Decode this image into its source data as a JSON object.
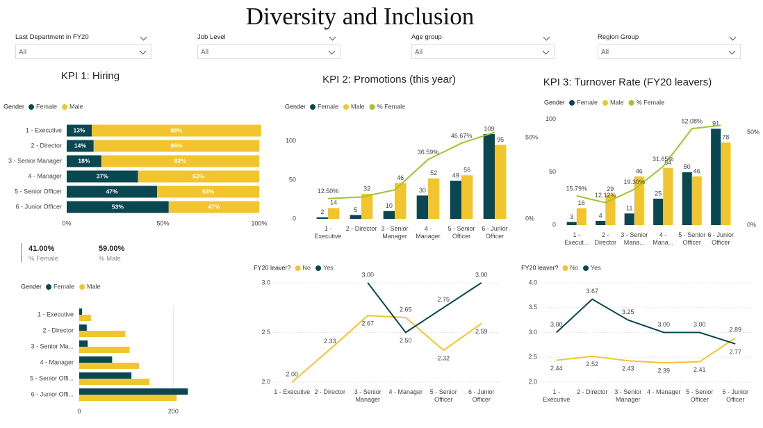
{
  "title": "Diversity and Inclusion",
  "filters": [
    {
      "label": "Last Department in FY20",
      "value": "All"
    },
    {
      "label": "Job Level",
      "value": "All"
    },
    {
      "label": "Age group",
      "value": "All"
    },
    {
      "label": "Region Group",
      "value": "All"
    }
  ],
  "cards": [
    {
      "value": "41.00%",
      "label": "% Female"
    },
    {
      "value": "59.00%",
      "label": "% Male"
    }
  ],
  "chart_data": [
    {
      "type": "bar",
      "orientation": "horizontal",
      "stacked": true,
      "grid": false,
      "title": "KPI 1: Hiring",
      "legend_title": "Gender",
      "categories": [
        "1 - Executive",
        "2 - Director",
        "3 - Senior Manager",
        "4 - Manager",
        "5 - Senior Officer",
        "6 - Junior Officer"
      ],
      "series": [
        {
          "name": "Female",
          "color": "#0b4751",
          "values": [
            13,
            14,
            18,
            37,
            47,
            53
          ],
          "value_labels": [
            "13%",
            "14%",
            "18%",
            "37%",
            "47%",
            "53%"
          ]
        },
        {
          "name": "Male",
          "color": "#f2c530",
          "values": [
            88,
            86,
            82,
            63,
            53,
            47
          ],
          "value_labels": [
            "88%",
            "86%",
            "82%",
            "63%",
            "53%",
            "47%"
          ]
        }
      ],
      "xlim": [
        0,
        100
      ],
      "xticks": [
        {
          "value": 0,
          "label": "0%"
        },
        {
          "value": 50,
          "label": "50%"
        },
        {
          "value": 100,
          "label": "100%"
        }
      ]
    },
    {
      "type": "combo",
      "grid": false,
      "title": "KPI 2: Promotions (this year)",
      "legend_title": "Gender",
      "categories": [
        "1 - Executive",
        "2 - Director",
        "3 - Senior Manager",
        "4 - Manager",
        "5 - Senior Officer",
        "6 - Junior Officer"
      ],
      "series": [
        {
          "name": "Female",
          "type": "bar",
          "color": "#0b4751",
          "values": [
            2,
            5,
            10,
            30,
            49,
            109
          ]
        },
        {
          "name": "Male",
          "type": "bar",
          "color": "#f2c530",
          "values": [
            14,
            32,
            46,
            52,
            56,
            95
          ]
        },
        {
          "name": "% Female",
          "type": "line",
          "axis": "y2",
          "color": "#9dc62d",
          "values": [
            12.5,
            13.51,
            17.86,
            36.59,
            46.67,
            53.43
          ],
          "value_labels": [
            "12.50%",
            null,
            null,
            "36.59%",
            "46.67%",
            null
          ]
        }
      ],
      "ylim": [
        0,
        125
      ],
      "yticks": [
        0,
        50,
        100
      ],
      "y2lim": [
        0,
        60
      ],
      "y2ticks": [
        {
          "value": 0,
          "label": "0%"
        },
        {
          "value": 50,
          "label": "50%"
        }
      ]
    },
    {
      "type": "combo",
      "grid": false,
      "title": "KPI 3: Turnover Rate (FY20 leavers)",
      "legend_title": "Gender",
      "categories": [
        "1 - Execut...",
        "2 - Director",
        "3 - Senior Mana...",
        "4 - Mana...",
        "5 - Senior Officer",
        "6 - Junior Officer"
      ],
      "series": [
        {
          "name": "Female",
          "type": "bar",
          "color": "#0b4751",
          "values": [
            3,
            4,
            11,
            25,
            50,
            91
          ]
        },
        {
          "name": "Male",
          "type": "bar",
          "color": "#f2c530",
          "values": [
            16,
            29,
            46,
            54,
            46,
            78
          ]
        },
        {
          "name": "% Female",
          "type": "line",
          "axis": "y2",
          "color": "#9dc62d",
          "values": [
            15.79,
            12.12,
            19.3,
            31.65,
            52.08,
            53.85
          ],
          "value_labels": [
            "15.79%",
            "12.12%",
            "19.30%",
            "31.65%",
            "52.08%",
            null
          ]
        }
      ],
      "ylim": [
        0,
        105
      ],
      "yticks": [
        0,
        50,
        100
      ],
      "y2lim": [
        0,
        60
      ],
      "y2ticks": [
        {
          "value": 0,
          "label": "0%"
        },
        {
          "value": 50,
          "label": "50%"
        }
      ]
    },
    {
      "type": "bar",
      "orientation": "horizontal",
      "stacked": false,
      "grid": true,
      "legend_title": "Gender",
      "categories": [
        "1 - Executive",
        "2 - Director",
        "3 - Senior Ma...",
        "4 - Manager",
        "5 - Senior Offi...",
        "6 - Junior Offi..."
      ],
      "series": [
        {
          "name": "Female",
          "color": "#0b4751",
          "values": [
            6,
            16,
            18,
            70,
            111,
            231
          ]
        },
        {
          "name": "Male",
          "color": "#f2c530",
          "values": [
            25,
            98,
            107,
            127,
            149,
            207
          ]
        }
      ],
      "xlim": [
        0,
        260
      ],
      "xticks": [
        0,
        200
      ]
    },
    {
      "type": "line",
      "grid": true,
      "legend_title": "FY20 leaver?",
      "categories": [
        "1 - Executive",
        "2 - Director",
        "3 - Senior Manager",
        "4 - Manager",
        "5 - Senior Officer",
        "6 - Junior Officer"
      ],
      "series": [
        {
          "name": "No",
          "color": "#f2c530",
          "values": [
            2.0,
            2.33,
            2.67,
            2.65,
            2.32,
            2.59
          ],
          "value_labels": [
            "2.00",
            "2.33",
            "2.67",
            "2.65",
            "2.32",
            "2.59"
          ]
        },
        {
          "name": "Yes",
          "color": "#0b4751",
          "values": [
            null,
            null,
            3.0,
            2.5,
            2.75,
            3.0
          ],
          "value_labels": [
            null,
            null,
            "3.00",
            "2.50",
            "2.75",
            "3.00"
          ]
        }
      ],
      "ylim": [
        2.0,
        3.0
      ],
      "yticks": [
        {
          "value": 2.0,
          "label": "2.0"
        },
        {
          "value": 2.5,
          "label": "2.5"
        },
        {
          "value": 3.0,
          "label": "3.0"
        }
      ]
    },
    {
      "type": "line",
      "grid": true,
      "legend_title": "FY20 leaver?",
      "categories": [
        "1 - Executive",
        "2 - Director",
        "3 - Senior Manager",
        "4 - Manager",
        "5 - Senior Officer",
        "6 - Junior Officer"
      ],
      "series": [
        {
          "name": "No",
          "color": "#f2c530",
          "values": [
            2.44,
            2.52,
            2.43,
            2.39,
            2.41,
            2.89
          ],
          "value_labels": [
            "2.44",
            "2.52",
            "2.43",
            "2.39",
            "2.41",
            "2.89"
          ]
        },
        {
          "name": "Yes",
          "color": "#0b4751",
          "values": [
            3.0,
            3.67,
            3.25,
            3.0,
            3.0,
            2.77
          ],
          "value_labels": [
            "3.00",
            "3.67",
            "3.25",
            "3.00",
            "3.00",
            "2.77"
          ]
        }
      ],
      "ylim": [
        2.0,
        4.0
      ],
      "yticks": [
        {
          "value": 2.0,
          "label": "2.0"
        },
        {
          "value": 2.5,
          "label": "2.5"
        },
        {
          "value": 3.0,
          "label": "3.0"
        },
        {
          "value": 3.5,
          "label": "3.5"
        },
        {
          "value": 4.0,
          "label": "4.0"
        }
      ]
    }
  ]
}
